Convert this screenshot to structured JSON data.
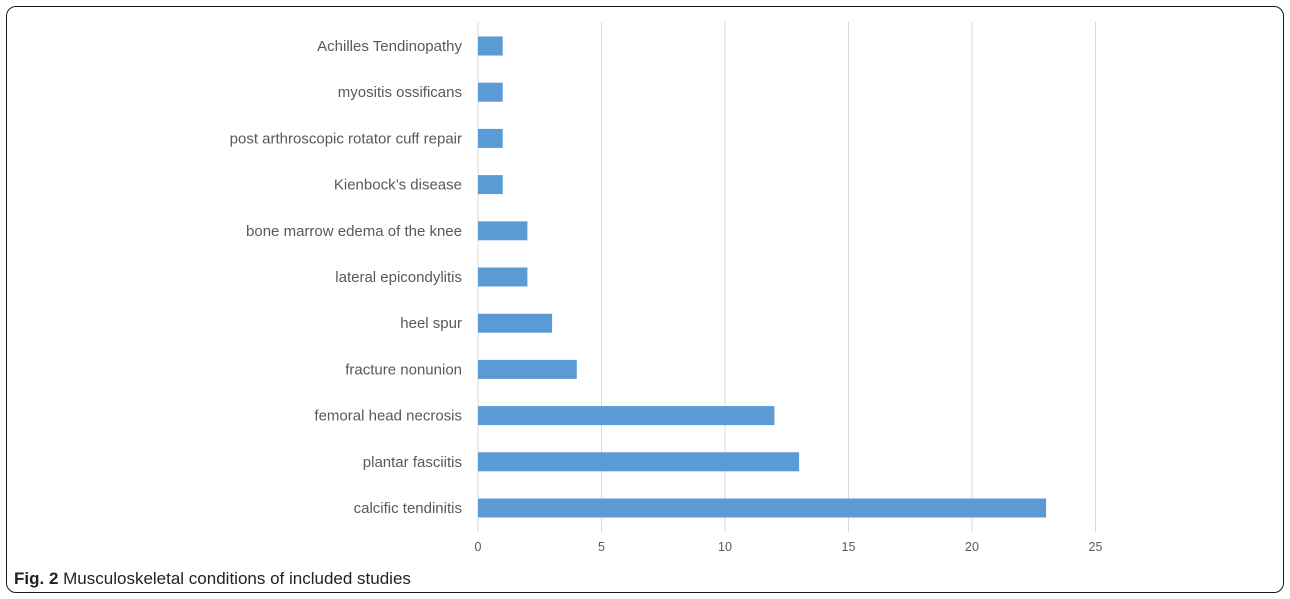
{
  "chart_data": {
    "type": "bar",
    "orientation": "horizontal",
    "categories": [
      "Achilles Tendinopathy",
      "myositis ossificans",
      "post arthroscopic rotator cuff repair",
      "Kienbock’s disease",
      "bone marrow edema of the knee",
      "lateral epicondylitis",
      "heel spur",
      "fracture nonunion",
      "femoral head necrosis",
      "plantar fasciitis",
      "calcific tendinitis"
    ],
    "values": [
      1,
      1,
      1,
      1,
      2,
      2,
      3,
      4,
      12,
      13,
      23
    ],
    "xlim": [
      0,
      25
    ],
    "xticks": [
      "0",
      "5",
      "10",
      "15",
      "20",
      "25"
    ],
    "title": "",
    "xlabel": "",
    "ylabel": "",
    "grid": "vertical",
    "bar_color": "#5b9bd5"
  },
  "caption": {
    "label": "Fig. 2",
    "text": "Musculoskeletal conditions of included studies"
  }
}
